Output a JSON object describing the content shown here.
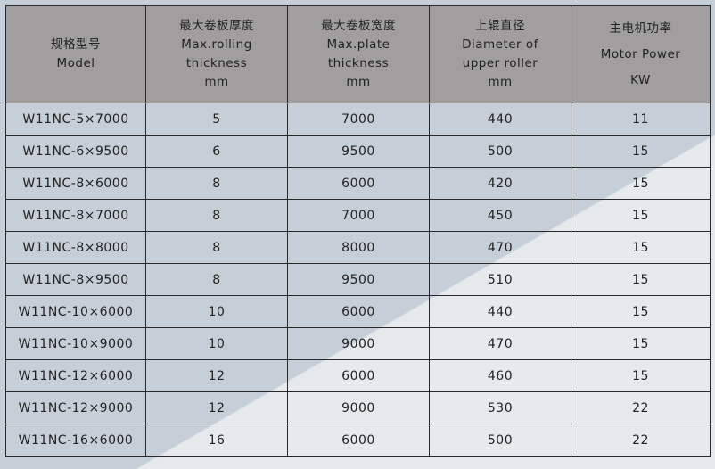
{
  "headers": [
    {
      "zh": "规格型号",
      "en1": "Model",
      "en2": "",
      "unit": ""
    },
    {
      "zh": "最大卷板厚度",
      "en1": "Max.rolling",
      "en2": "thickness",
      "unit": "mm"
    },
    {
      "zh": "最大卷板宽度",
      "en1": "Max.plate",
      "en2": "thickness",
      "unit": "mm"
    },
    {
      "zh": "上辊直径",
      "en1": "Diameter of",
      "en2": "upper roller",
      "unit": "mm"
    },
    {
      "zh": "主电机功率",
      "en1": "Motor Power",
      "en2": "",
      "unit": "KW"
    }
  ],
  "rows": [
    [
      "W11NC-5×7000",
      "5",
      "7000",
      "440",
      "11"
    ],
    [
      "W11NC-6×9500",
      "6",
      "9500",
      "500",
      "15"
    ],
    [
      "W11NC-8×6000",
      "8",
      "6000",
      "420",
      "15"
    ],
    [
      "W11NC-8×7000",
      "8",
      "7000",
      "450",
      "15"
    ],
    [
      "W11NC-8×8000",
      "8",
      "8000",
      "470",
      "15"
    ],
    [
      "W11NC-8×9500",
      "8",
      "9500",
      "510",
      "15"
    ],
    [
      "W11NC-10×6000",
      "10",
      "6000",
      "440",
      "15"
    ],
    [
      "W11NC-10×9000",
      "10",
      "9000",
      "470",
      "15"
    ],
    [
      "W11NC-12×6000",
      "12",
      "6000",
      "460",
      "15"
    ],
    [
      "W11NC-12×9000",
      "12",
      "9000",
      "530",
      "22"
    ],
    [
      "W11NC-16×6000",
      "16",
      "6000",
      "500",
      "22"
    ]
  ]
}
